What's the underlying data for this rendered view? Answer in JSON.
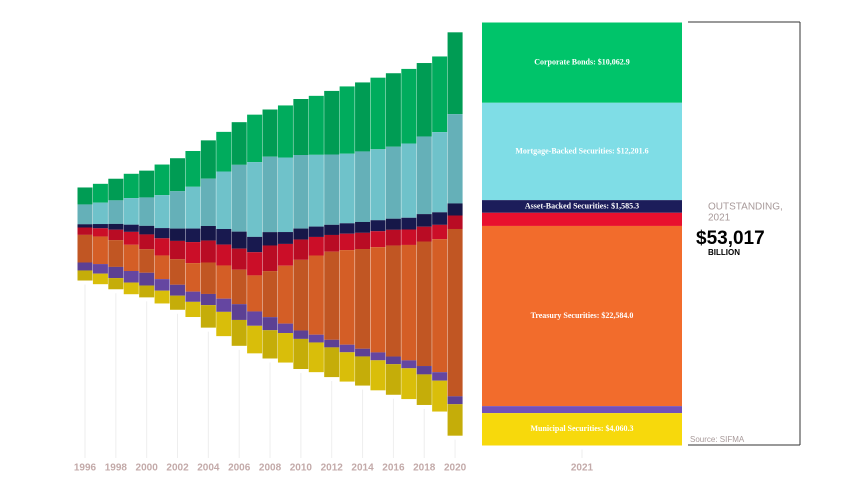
{
  "chart_data": {
    "type": "stream",
    "categories": [
      "1996",
      null,
      "1998",
      null,
      "2000",
      null,
      "2002",
      null,
      "2004",
      null,
      "2006",
      null,
      "2008",
      null,
      "2010",
      null,
      "2012",
      null,
      "2014",
      null,
      "2016",
      null,
      "2018",
      null,
      "2020",
      "2021"
    ],
    "series": [
      {
        "label": "Corporate Bonds: $10,062.9",
        "color": "#00c46a",
        "values": [
          2126,
          2359,
          2709,
          3046,
          3358,
          3837,
          4132,
          4486,
          4801,
          4966,
          5344,
          5947,
          5913,
          6526,
          7020,
          7391,
          7969,
          8434,
          8649,
          8971,
          9212,
          9352,
          9204,
          9484,
          10258,
          10062.9
        ]
      },
      {
        "label": "Mortgage-Backed Securities: $12,201.6",
        "color": "#7fdde6",
        "values": [
          2486,
          2680,
          2955,
          3334,
          3565,
          4127,
          4686,
          5239,
          5931,
          7206,
          8376,
          9372,
          9458,
          9342,
          9221,
          8995,
          8814,
          8722,
          8842,
          8895,
          9023,
          9305,
          9732,
          10050,
          11187,
          12201.6
        ]
      },
      {
        "label": "Asset-Backed Securities: $1,585.3",
        "color": "#1c1d5a",
        "values": [
          404,
          535,
          731,
          900,
          1072,
          1281,
          1543,
          1693,
          1828,
          1955,
          2130,
          1922,
          1672,
          1489,
          1378,
          1298,
          1270,
          1305,
          1359,
          1379,
          1390,
          1471,
          1582,
          1572,
          1512,
          1585.3
        ]
      },
      {
        "color": "#e8102e",
        "values": [
          926,
          1022,
          1300,
          1620,
          1854,
          2149,
          2293,
          2636,
          2745,
          2616,
          2634,
          2906,
          3210,
          2727,
          2538,
          2327,
          2096,
          2057,
          2029,
          1996,
          1971,
          1934,
          1850,
          1794,
          1690,
          1650
        ]
      },
      {
        "label": "Treasury Securities: $22,584.0",
        "color": "#f26c2c",
        "values": [
          3460,
          3460,
          3355,
          3281,
          2952,
          2967,
          3205,
          3575,
          3944,
          4166,
          4323,
          4517,
          5774,
          7261,
          8853,
          9928,
          11046,
          11854,
          12504,
          13191,
          13908,
          14469,
          15608,
          16673,
          20974,
          22584.0
        ]
      },
      {
        "color": "#7350b8",
        "values": [
          1000,
          1200,
          1400,
          1450,
          1600,
          1450,
          1370,
          1280,
          1400,
          1650,
          1980,
          1800,
          1640,
          1180,
          1060,
          970,
          950,
          950,
          960,
          990,
          960,
          990,
          1050,
          1060,
          990,
          873
        ]
      },
      {
        "label": "Municipal Securities: $4,060.3",
        "color": "#f7d90c",
        "values": [
          1260,
          1320,
          1400,
          1460,
          1480,
          1600,
          1760,
          1900,
          2820,
          3040,
          3240,
          3450,
          3540,
          3700,
          3770,
          3720,
          3720,
          3670,
          3650,
          3760,
          3830,
          3860,
          3830,
          3870,
          3940,
          4060.3
        ]
      }
    ],
    "total_caption": "OUTSTANDING,",
    "total_year": "2021",
    "total_value": 53017,
    "total_value_label": "$53,017",
    "total_unit": "BILLION",
    "source": "Source: SIFMA"
  }
}
